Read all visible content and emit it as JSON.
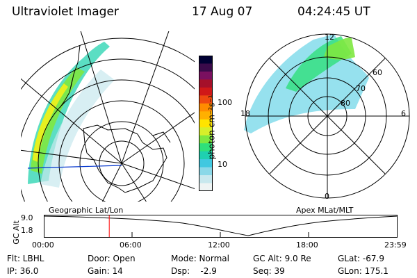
{
  "header": {
    "instrument": "Ultraviolet Imager",
    "date": "17 Aug 07",
    "time": "04:24:45 UT"
  },
  "left_map": {
    "label": "Geographic Lat/Lon"
  },
  "right_map": {
    "label": "Apex MLat/MLT",
    "mlt_labels": {
      "top": "12",
      "bottom": "0",
      "left": "18",
      "right": "6"
    },
    "mlat_labels": [
      "60",
      "70",
      "80"
    ]
  },
  "colorbar": {
    "unit_label": "photon cm⁻²s⁻¹",
    "ticks": [
      "100",
      "10"
    ],
    "scale": "log",
    "colors": [
      "#000033",
      "#3a0a4a",
      "#7a1060",
      "#a5102a",
      "#d01818",
      "#ee4a10",
      "#ff8c00",
      "#ffb000",
      "#ffe400",
      "#d7ef2a",
      "#7ee840",
      "#2fe07a",
      "#1fd0b0",
      "#40c8e0",
      "#8ad8e8",
      "#c8e8ee",
      "#eef4f4"
    ]
  },
  "altitude_plot": {
    "ylabel": "GC Alt",
    "ytick_labels": [
      "9.0",
      "1.8"
    ],
    "xtick_labels": [
      "00:00",
      "06:00",
      "12:00",
      "18:00",
      "23:59"
    ],
    "marker_color": "#ff0000",
    "marker_time_hours": 4.41
  },
  "footer": {
    "filter": "Flt: LBHL",
    "ip": "IP: 36.0",
    "door": "Door: Open",
    "gain": "Gain: 14",
    "mode": "Mode: Normal",
    "dsp": "Dsp:    -2.9",
    "gc_alt": "GC Alt: 9.0 Re",
    "seq": "Seq: 39",
    "glat": "GLat: -67.9",
    "glon": "GLon: 175.1"
  }
}
